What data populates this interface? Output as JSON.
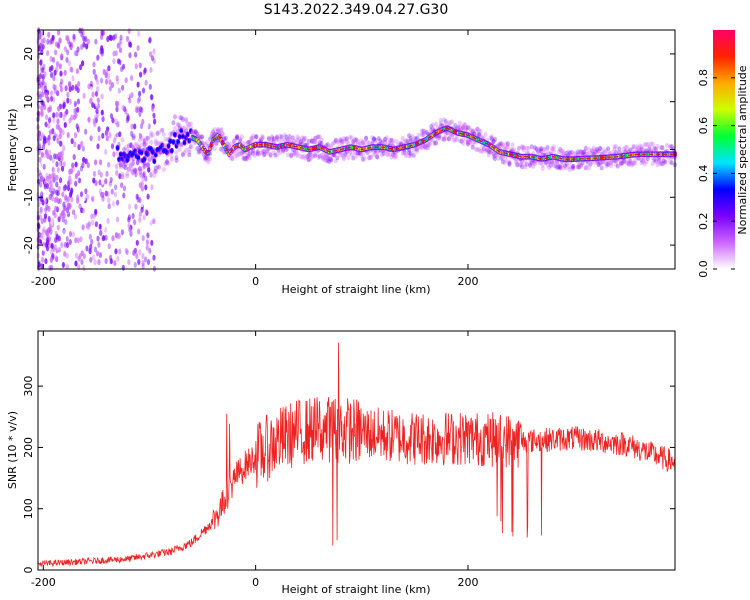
{
  "title": "S143.2022.349.04.27.G30",
  "colors": {
    "snr_line": "#ee2222",
    "ridge": "#cc1133",
    "colormap": [
      "#ffffff",
      "#cc66ff",
      "#7a00ff",
      "#0000ff",
      "#00e5ff",
      "#00ff33",
      "#ccff00",
      "#ffaa00",
      "#ff2200",
      "#ff0066"
    ]
  },
  "chart_data": [
    {
      "type": "heatmap",
      "xlabel": "Height of straight line (km)",
      "ylabel": "Frequency (Hz)",
      "xlim": [
        -205,
        395
      ],
      "ylim": [
        -25,
        25
      ],
      "xticks": [
        -200,
        0,
        200
      ],
      "yticks": [
        -20,
        -10,
        0,
        10,
        20
      ],
      "ridge": {
        "x": [
          -130,
          -110,
          -95,
          -85,
          -75,
          -65,
          -55,
          -45,
          -40,
          -35,
          -30,
          -25,
          -20,
          -15,
          -10,
          -5,
          0,
          10,
          20,
          30,
          40,
          50,
          60,
          70,
          80,
          90,
          100,
          110,
          120,
          130,
          140,
          150,
          160,
          170,
          175,
          180,
          185,
          190,
          200,
          210,
          220,
          230,
          240,
          250,
          260,
          270,
          280,
          290,
          300,
          320,
          340,
          360,
          380,
          395
        ],
        "freq": [
          -1,
          -1.5,
          -1,
          0,
          2,
          3,
          2,
          -1,
          2,
          3,
          1,
          -1,
          0.5,
          1,
          0,
          0.5,
          1,
          1,
          0.5,
          1,
          0.5,
          0,
          0.5,
          -0.5,
          0,
          0.5,
          0,
          0.5,
          0.5,
          0,
          0.5,
          1,
          2,
          3.5,
          4,
          4.5,
          4,
          3.5,
          3,
          2,
          1,
          -0.5,
          -1,
          -1.5,
          -1.5,
          -2,
          -1.5,
          -2,
          -2,
          -1.8,
          -1.5,
          -1,
          -1,
          -1
        ]
      },
      "colorbar": {
        "label": "Normalized spectral amplitude",
        "range": [
          0,
          1
        ],
        "ticks": [
          0.0,
          0.2,
          0.4,
          0.6,
          0.8
        ],
        "tick_labels": [
          "0.0",
          "0.2",
          "0.4",
          "0.6",
          "0.8"
        ]
      }
    },
    {
      "type": "line",
      "xlabel": "Height of straight line (km)",
      "ylabel": "SNR (10 * v/v)",
      "xlim": [
        -205,
        395
      ],
      "ylim": [
        0,
        390
      ],
      "xticks": [
        -200,
        0,
        200
      ],
      "yticks": [
        0,
        100,
        200,
        300
      ],
      "trend": {
        "x": [
          -205,
          -150,
          -120,
          -80,
          -60,
          -40,
          -30,
          -20,
          -10,
          0,
          20,
          40,
          60,
          80,
          100,
          120,
          150,
          200,
          250,
          300,
          350,
          395
        ],
        "y": [
          10,
          15,
          18,
          30,
          45,
          80,
          110,
          150,
          170,
          185,
          210,
          225,
          230,
          230,
          225,
          220,
          215,
          215,
          210,
          215,
          205,
          175
        ]
      }
    }
  ]
}
